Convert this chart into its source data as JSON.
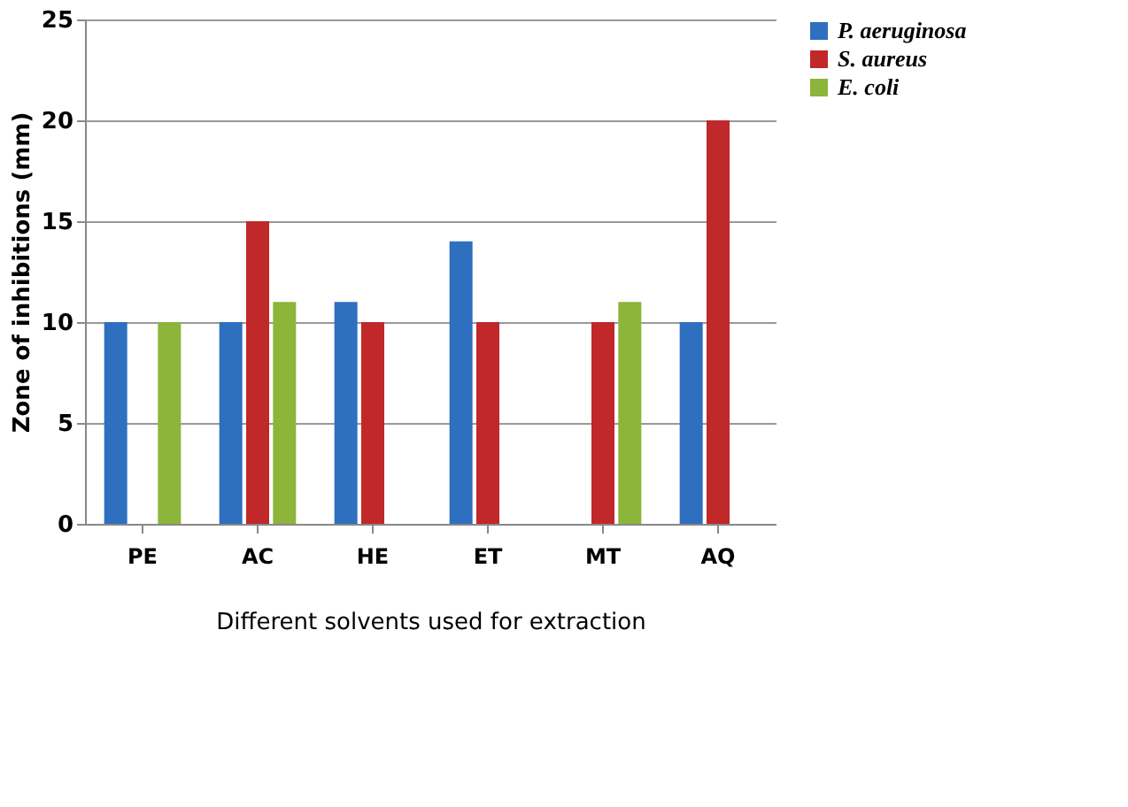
{
  "chart_data": {
    "type": "bar",
    "xlabel": "Different solvents used for extraction",
    "ylabel": "Zone of inhibitions   (mm)",
    "categories": [
      "PE",
      "AC",
      "HE",
      "ET",
      "MT",
      "AQ"
    ],
    "series": [
      {
        "name": "P. aeruginosa",
        "color": "#2e6fbf",
        "values": [
          10,
          10,
          11,
          14,
          null,
          10
        ]
      },
      {
        "name": "S. aureus",
        "color": "#c0282a",
        "values": [
          null,
          15,
          10,
          10,
          10,
          20
        ]
      },
      {
        "name": "E. coli",
        "color": "#8cb53a",
        "values": [
          10,
          11,
          null,
          null,
          11,
          null
        ]
      }
    ],
    "ylim": [
      0,
      25
    ],
    "yticks": [
      0,
      5,
      10,
      15,
      20,
      25
    ],
    "grid": "y",
    "legend": "right"
  }
}
